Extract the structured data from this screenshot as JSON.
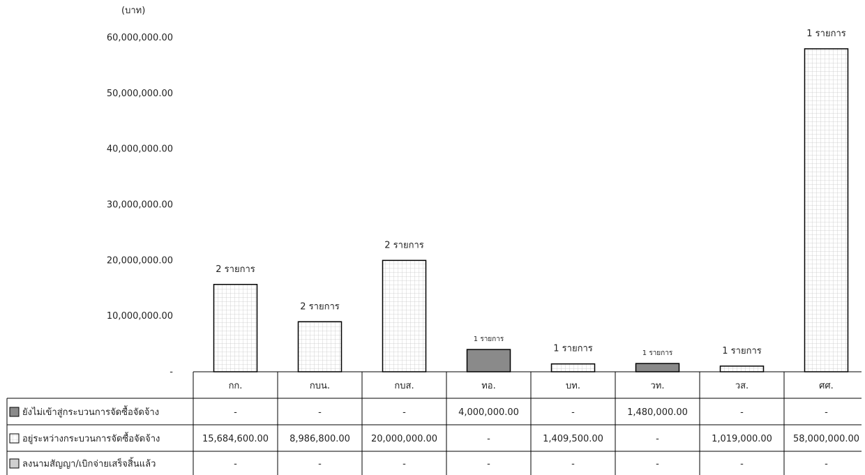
{
  "chart_data": {
    "type": "bar",
    "unit_label": "(บาท)",
    "y_ticks": [
      "-",
      "10,000,000.00",
      "20,000,000.00",
      "30,000,000.00",
      "40,000,000.00",
      "50,000,000.00",
      "60,000,000.00"
    ],
    "ylim": [
      0,
      60000000
    ],
    "grid": false,
    "categories": [
      "กก.",
      "กบน.",
      "กบส.",
      "ทอ.",
      "บท.",
      "วท.",
      "วส.",
      "ศศ."
    ],
    "series": [
      {
        "name": "ยังไม่เข้าสู่กระบวนการจัดซื้อจัดจ้าง",
        "fill": "#8a8a8a",
        "values": [
          0,
          0,
          0,
          4000000,
          0,
          1480000,
          0,
          0
        ],
        "cells": [
          "-",
          "-",
          "-",
          "4,000,000.00",
          "-",
          "1,480,000.00",
          "-",
          "-"
        ]
      },
      {
        "name": "อยู่ระหว่างกระบวนการจัดซื้อจัดจ้าง",
        "fill": "#ffffff",
        "values": [
          15684600,
          8986800,
          20000000,
          0,
          1409500,
          0,
          1019000,
          58000000
        ],
        "cells": [
          "15,684,600.00",
          "8,986,800.00",
          "20,000,000.00",
          "-",
          "1,409,500.00",
          "-",
          "1,019,000.00",
          "58,000,000.00"
        ]
      },
      {
        "name": "ลงนามสัญญา/เบิกจ่ายเสร็จสิ้นแล้ว",
        "fill": "#cfcfcf",
        "values": [
          0,
          0,
          0,
          0,
          0,
          0,
          0,
          0
        ],
        "cells": [
          "-",
          "-",
          "-",
          "-",
          "-",
          "-",
          "-",
          "-"
        ]
      }
    ],
    "bar_labels": [
      "2 รายการ",
      "2 รายการ",
      "2 รายการ",
      "1 รายการ",
      "1 รายการ",
      "1 รายการ",
      "1 รายการ",
      "1 รายการ"
    ]
  }
}
